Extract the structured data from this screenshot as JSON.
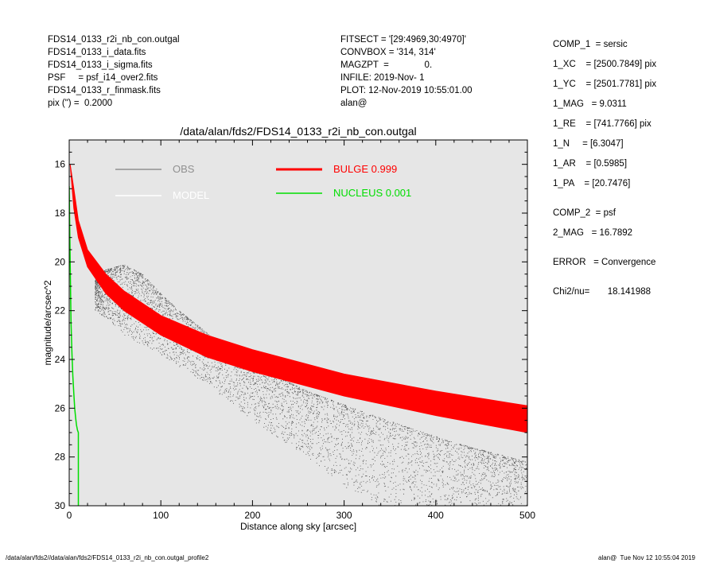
{
  "header_left": [
    "FDS14_0133_r2i_nb_con.outgal",
    "FDS14_0133_i_data.fits",
    "FDS14_0133_i_sigma.fits",
    "PSF     = psf_i14_over2.fits",
    "FDS14_0133_r_finmask.fits",
    "pix (\") =  0.2000"
  ],
  "header_mid": [
    "FITSECT = '[29:4969,30:4970]'",
    "CONVBOX = '314, 314'",
    "MAGZPT  =              0.",
    "INFILE: 2019-Nov- 1",
    "PLOT: 12-Nov-2019 10:55:01.00",
    "alan@"
  ],
  "params": [
    "COMP_1  = sersic",
    "1_XC    = [2500.7849] pix",
    "1_YC    = [2501.7781] pix",
    "1_MAG   = 9.0311",
    "1_RE    = [741.7766] pix",
    "1_N     = [6.3047]",
    "1_AR    = [0.5985]",
    "1_PA    = [20.7476]",
    "COMP_2  = psf",
    "2_MAG   = 16.7892",
    "ERROR   = Convergence",
    "Chi2/nu=       18.141988"
  ],
  "footer_left": "/data/alan/fds2//data/alan/fds2/FDS14_0133_r2i_nb_con.outgal_profile2",
  "footer_right": "alan@  Tue Nov 12 10:55:04 2019",
  "chart_data": {
    "type": "scatter",
    "title": "/data/alan/fds2/FDS14_0133_r2i_nb_con.outgal",
    "xlabel": "Distance along sky [arcsec]",
    "ylabel": "magnitude/arcsec^2",
    "xlim": [
      0,
      500
    ],
    "ylim": [
      30,
      15
    ],
    "y_inverted": true,
    "x_ticks": [
      0,
      100,
      200,
      300,
      400,
      500
    ],
    "y_ticks": [
      16,
      18,
      20,
      22,
      24,
      26,
      28,
      30
    ],
    "plot_background": "#e6e6e6",
    "legend": [
      {
        "label": "OBS",
        "color": "#909090",
        "value": ""
      },
      {
        "label": "MODEL",
        "color": "#ffffff",
        "value": ""
      },
      {
        "label": "BULGE",
        "color": "#ff0000",
        "value": "0.999"
      },
      {
        "label": "NUCLEUS",
        "color": "#00dd00",
        "value": "0.001"
      }
    ],
    "series": [
      {
        "name": "OBS",
        "type": "scatter-cloud",
        "color": "#222222",
        "upper_edge": [
          [
            30,
            20.6
          ],
          [
            40,
            20.3
          ],
          [
            60,
            20.1
          ],
          [
            80,
            20.5
          ],
          [
            100,
            21.3
          ],
          [
            120,
            22.0
          ],
          [
            140,
            22.6
          ],
          [
            160,
            23.2
          ],
          [
            200,
            24.2
          ],
          [
            260,
            25.3
          ],
          [
            340,
            26.4
          ],
          [
            420,
            27.4
          ],
          [
            500,
            28.2
          ]
        ],
        "lower_edge": [
          [
            30,
            22.0
          ],
          [
            60,
            23.0
          ],
          [
            100,
            23.8
          ],
          [
            150,
            25.0
          ],
          [
            200,
            26.5
          ],
          [
            260,
            28.0
          ],
          [
            300,
            29.2
          ],
          [
            340,
            30.0
          ]
        ]
      },
      {
        "name": "BULGE",
        "type": "band",
        "color": "#ff0000",
        "upper": [
          [
            1,
            16.0
          ],
          [
            5,
            17.0
          ],
          [
            10,
            18.3
          ],
          [
            20,
            19.5
          ],
          [
            40,
            20.5
          ],
          [
            60,
            21.2
          ],
          [
            100,
            22.2
          ],
          [
            150,
            23.0
          ],
          [
            200,
            23.6
          ],
          [
            300,
            24.6
          ],
          [
            400,
            25.3
          ],
          [
            500,
            25.9
          ]
        ],
        "lower": [
          [
            5,
            17.8
          ],
          [
            10,
            19.0
          ],
          [
            20,
            20.2
          ],
          [
            40,
            21.3
          ],
          [
            60,
            22.0
          ],
          [
            100,
            23.0
          ],
          [
            150,
            23.9
          ],
          [
            200,
            24.5
          ],
          [
            300,
            25.5
          ],
          [
            400,
            26.3
          ],
          [
            500,
            27.0
          ]
        ]
      },
      {
        "name": "NUCLEUS",
        "type": "line",
        "color": "#00dd00",
        "points": [
          [
            0,
            16.9
          ],
          [
            0.5,
            18.5
          ],
          [
            1,
            20.0
          ],
          [
            2,
            22.5
          ],
          [
            3,
            23.8
          ],
          [
            4,
            24.7
          ],
          [
            5,
            25.4
          ],
          [
            6,
            26.0
          ],
          [
            7,
            26.4
          ],
          [
            8,
            26.7
          ],
          [
            9,
            26.9
          ],
          [
            10,
            27.0
          ],
          [
            10,
            30.0
          ]
        ]
      }
    ]
  }
}
